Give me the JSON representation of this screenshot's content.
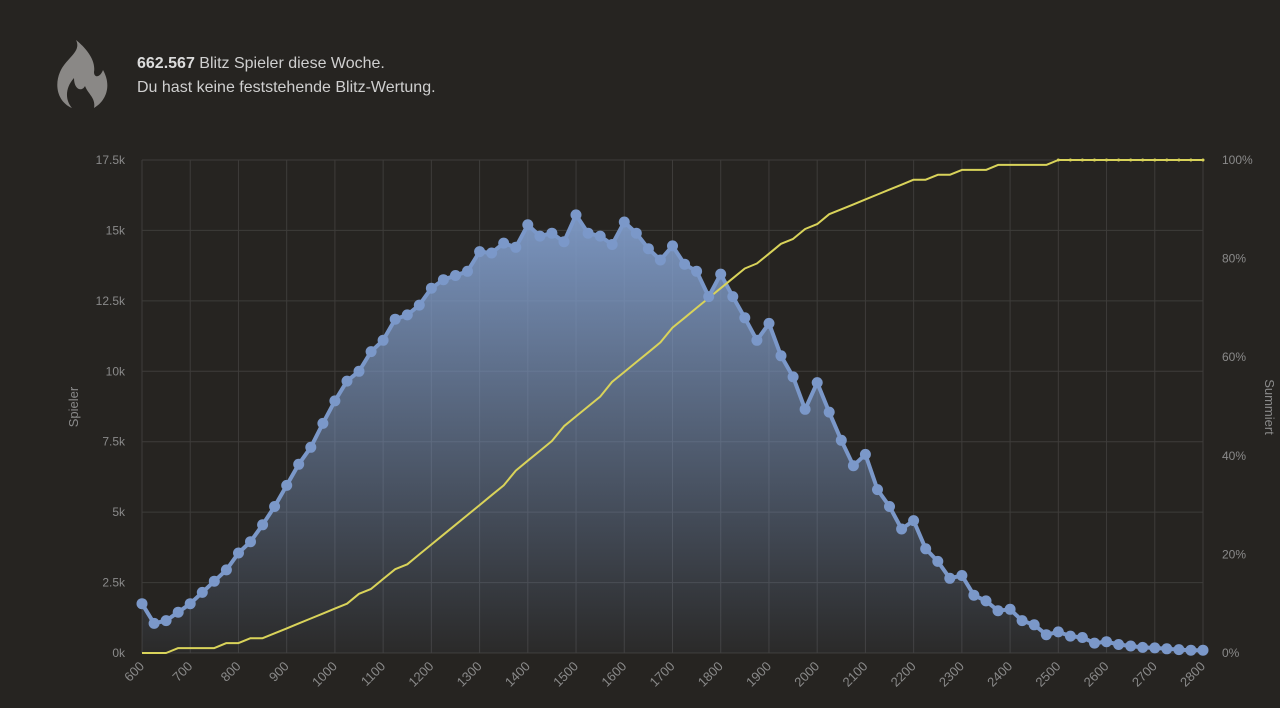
{
  "header": {
    "player_count": "662.567",
    "line1_rest": " Blitz Spieler diese Woche.",
    "line2": "Du hast keine feststehende Blitz-Wertung."
  },
  "icons": {
    "header": "flame-icon"
  },
  "colors": {
    "background": "#262421",
    "distribution": "#7b98c9",
    "cumulative": "#d9d35a",
    "grid": "#3e3c3a",
    "axis_text": "#8a8a8a"
  },
  "chart_data": {
    "type": "area",
    "xlabel": "",
    "ylabel": "Spieler",
    "y2label": "Summiert",
    "xlim": [
      600,
      2800
    ],
    "ylim": [
      0,
      17500
    ],
    "y2lim": [
      0,
      100
    ],
    "grid": true,
    "x_ticks": [
      "600",
      "700",
      "800",
      "900",
      "1000",
      "1100",
      "1200",
      "1300",
      "1400",
      "1500",
      "1600",
      "1700",
      "1800",
      "1900",
      "2000",
      "2100",
      "2200",
      "2300",
      "2400",
      "2500",
      "2600",
      "2700",
      "2800"
    ],
    "y_ticks": [
      "0k",
      "2.5k",
      "5k",
      "7.5k",
      "10k",
      "12.5k",
      "15k",
      "17.5k"
    ],
    "y_tick_values": [
      0,
      2500,
      5000,
      7500,
      10000,
      12500,
      15000,
      17500
    ],
    "y2_ticks": [
      "0%",
      "20%",
      "40%",
      "60%",
      "80%",
      "100%"
    ],
    "y2_tick_values": [
      0,
      20,
      40,
      60,
      80,
      100
    ],
    "x": [
      600,
      625,
      650,
      675,
      700,
      725,
      750,
      775,
      800,
      825,
      850,
      875,
      900,
      925,
      950,
      975,
      1000,
      1025,
      1050,
      1075,
      1100,
      1125,
      1150,
      1175,
      1200,
      1225,
      1250,
      1275,
      1300,
      1325,
      1350,
      1375,
      1400,
      1425,
      1450,
      1475,
      1500,
      1525,
      1550,
      1575,
      1600,
      1625,
      1650,
      1675,
      1700,
      1725,
      1750,
      1775,
      1800,
      1825,
      1850,
      1875,
      1900,
      1925,
      1950,
      1975,
      2000,
      2025,
      2050,
      2075,
      2100,
      2125,
      2150,
      2175,
      2200,
      2225,
      2250,
      2275,
      2300,
      2325,
      2350,
      2375,
      2400,
      2425,
      2450,
      2475,
      2500,
      2525,
      2550,
      2575,
      2600,
      2625,
      2650,
      2675,
      2700,
      2725,
      2750,
      2775,
      2800
    ],
    "series": [
      {
        "values": [
          1750,
          1050,
          1150,
          1450,
          1750,
          2150,
          2550,
          2950,
          3550,
          3950,
          4550,
          5200,
          5950,
          6700,
          7300,
          8150,
          8950,
          9650,
          10000,
          10700,
          11100,
          11850,
          12000,
          12350,
          12950,
          13250,
          13400,
          13550,
          14250,
          14200,
          14550,
          14400,
          15200,
          14800,
          14900,
          14600,
          15550,
          14900,
          14800,
          14500,
          15300,
          14900,
          14350,
          13950,
          14450,
          13800,
          13550,
          12650,
          13450,
          12650,
          11900,
          11100,
          11700,
          10550,
          9800,
          8650,
          9600,
          8550,
          7550,
          6650,
          7050,
          5800,
          5200,
          4400,
          4700,
          3700,
          3250,
          2650,
          2750,
          2050,
          1850,
          1500,
          1550,
          1150,
          1000,
          650,
          750,
          600,
          550,
          350,
          400,
          300,
          250,
          200,
          180,
          150,
          120,
          100,
          100
        ]
      },
      {
        "values": [
          0,
          0,
          0,
          1,
          1,
          1,
          1,
          2,
          2,
          3,
          3,
          4,
          5,
          6,
          7,
          8,
          9,
          10,
          12,
          13,
          15,
          17,
          18,
          20,
          22,
          24,
          26,
          28,
          30,
          32,
          34,
          37,
          39,
          41,
          43,
          46,
          48,
          50,
          52,
          55,
          57,
          59,
          61,
          63,
          66,
          68,
          70,
          72,
          74,
          76,
          78,
          79,
          81,
          83,
          84,
          86,
          87,
          89,
          90,
          91,
          92,
          93,
          94,
          95,
          96,
          96,
          97,
          97,
          98,
          98,
          98,
          99,
          99,
          99,
          99,
          99,
          100,
          100,
          100,
          100,
          100,
          100,
          100,
          100,
          100,
          100,
          100,
          100,
          100
        ]
      }
    ]
  }
}
